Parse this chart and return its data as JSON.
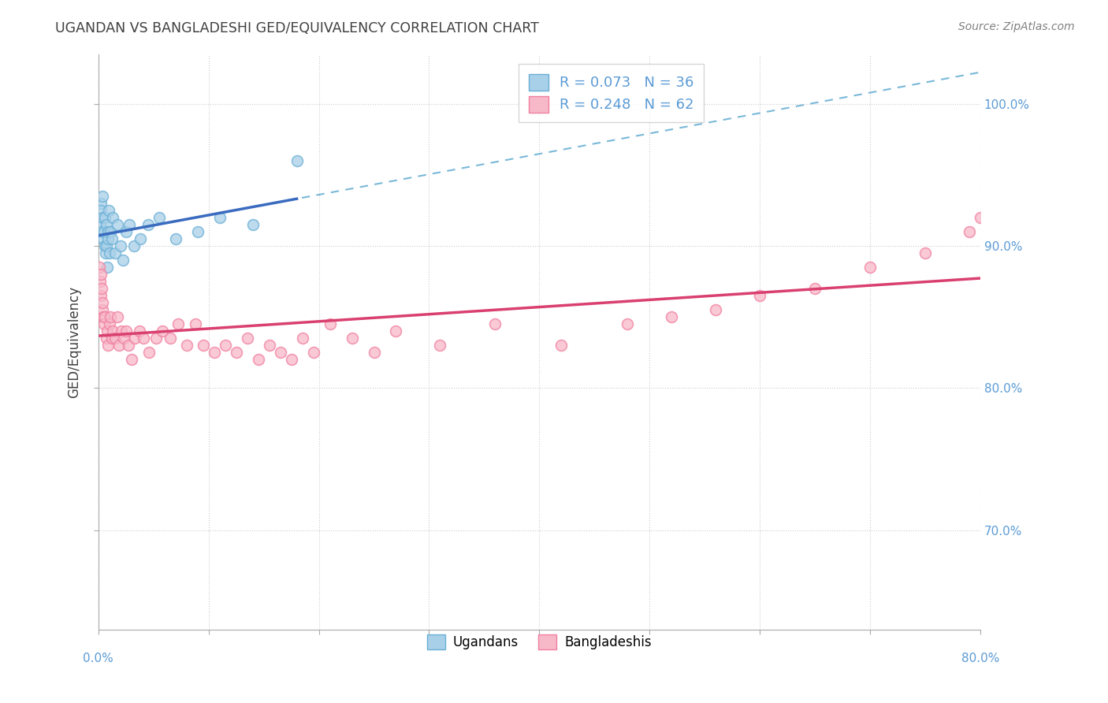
{
  "title": "UGANDAN VS BANGLADESHI GED/EQUIVALENCY CORRELATION CHART",
  "source": "Source: ZipAtlas.com",
  "ylabel": "GED/Equivalency",
  "ytick_labels_right": [
    "70.0%",
    "80.0%",
    "90.0%",
    "100.0%"
  ],
  "ytick_vals": [
    70.0,
    80.0,
    90.0,
    100.0
  ],
  "xmin": 0.0,
  "xmax": 80.0,
  "ymin": 63.0,
  "ymax": 103.5,
  "legend_label1": "Ugandans",
  "legend_label2": "Bangladeshis",
  "color_ugandan_fill": "#a8d0e8",
  "color_ugandan_edge": "#6aafd6",
  "color_bangladeshi_fill": "#f7b8c8",
  "color_bangladeshi_edge": "#f080a0",
  "color_trend_ugandan": "#3a6bbf",
  "color_trend_bangladeshi": "#d94070",
  "color_dashed": "#7ab8d8",
  "color_axis_labels": "#5b9bd5",
  "color_title": "#404040",
  "color_source": "#808080",
  "scatter_alpha": 0.75,
  "scatter_size": 100,
  "ugandan_x": [
    0.15,
    0.2,
    0.25,
    0.3,
    0.35,
    0.4,
    0.45,
    0.5,
    0.55,
    0.6,
    0.65,
    0.7,
    0.75,
    0.8,
    0.85,
    0.9,
    0.95,
    1.0,
    1.1,
    1.2,
    1.3,
    1.5,
    1.7,
    2.0,
    2.2,
    2.5,
    2.8,
    3.2,
    3.8,
    4.5,
    5.5,
    7.0,
    9.0,
    11.0,
    14.0,
    18.0
  ],
  "ugandan_y": [
    91.5,
    93.0,
    92.5,
    91.0,
    93.5,
    92.0,
    90.5,
    91.0,
    92.0,
    90.0,
    89.5,
    91.5,
    90.0,
    88.5,
    91.0,
    90.5,
    92.5,
    89.5,
    91.0,
    90.5,
    92.0,
    89.5,
    91.5,
    90.0,
    89.0,
    91.0,
    91.5,
    90.0,
    90.5,
    91.5,
    92.0,
    90.5,
    91.0,
    92.0,
    91.5,
    96.0
  ],
  "bangladeshi_x": [
    0.1,
    0.15,
    0.2,
    0.25,
    0.3,
    0.35,
    0.4,
    0.45,
    0.5,
    0.6,
    0.7,
    0.8,
    0.9,
    1.0,
    1.1,
    1.2,
    1.3,
    1.5,
    1.7,
    1.9,
    2.1,
    2.3,
    2.5,
    2.7,
    3.0,
    3.3,
    3.7,
    4.1,
    4.6,
    5.2,
    5.8,
    6.5,
    7.2,
    8.0,
    8.8,
    9.5,
    10.5,
    11.5,
    12.5,
    13.5,
    14.5,
    15.5,
    16.5,
    17.5,
    18.5,
    19.5,
    21.0,
    23.0,
    25.0,
    27.0,
    31.0,
    36.0,
    42.0,
    48.0,
    52.0,
    56.0,
    60.0,
    65.0,
    70.0,
    75.0,
    79.0,
    80.0
  ],
  "bangladeshi_y": [
    88.5,
    87.5,
    88.0,
    86.5,
    87.0,
    85.5,
    86.0,
    85.0,
    84.5,
    85.0,
    83.5,
    84.0,
    83.0,
    84.5,
    85.0,
    83.5,
    84.0,
    83.5,
    85.0,
    83.0,
    84.0,
    83.5,
    84.0,
    83.0,
    82.0,
    83.5,
    84.0,
    83.5,
    82.5,
    83.5,
    84.0,
    83.5,
    84.5,
    83.0,
    84.5,
    83.0,
    82.5,
    83.0,
    82.5,
    83.5,
    82.0,
    83.0,
    82.5,
    82.0,
    83.5,
    82.5,
    84.5,
    83.5,
    82.5,
    84.0,
    83.0,
    84.5,
    83.0,
    84.5,
    85.0,
    85.5,
    86.5,
    87.0,
    88.5,
    89.5,
    91.0,
    92.0
  ],
  "gridline_color": "#cccccc",
  "gridline_style": "dotted",
  "background_color": "#ffffff",
  "legend_box_color": "#5b9bd5",
  "legend_R1": "R = 0.073",
  "legend_N1": "N = 36",
  "legend_R2": "R = 0.248",
  "legend_N2": "N = 62"
}
